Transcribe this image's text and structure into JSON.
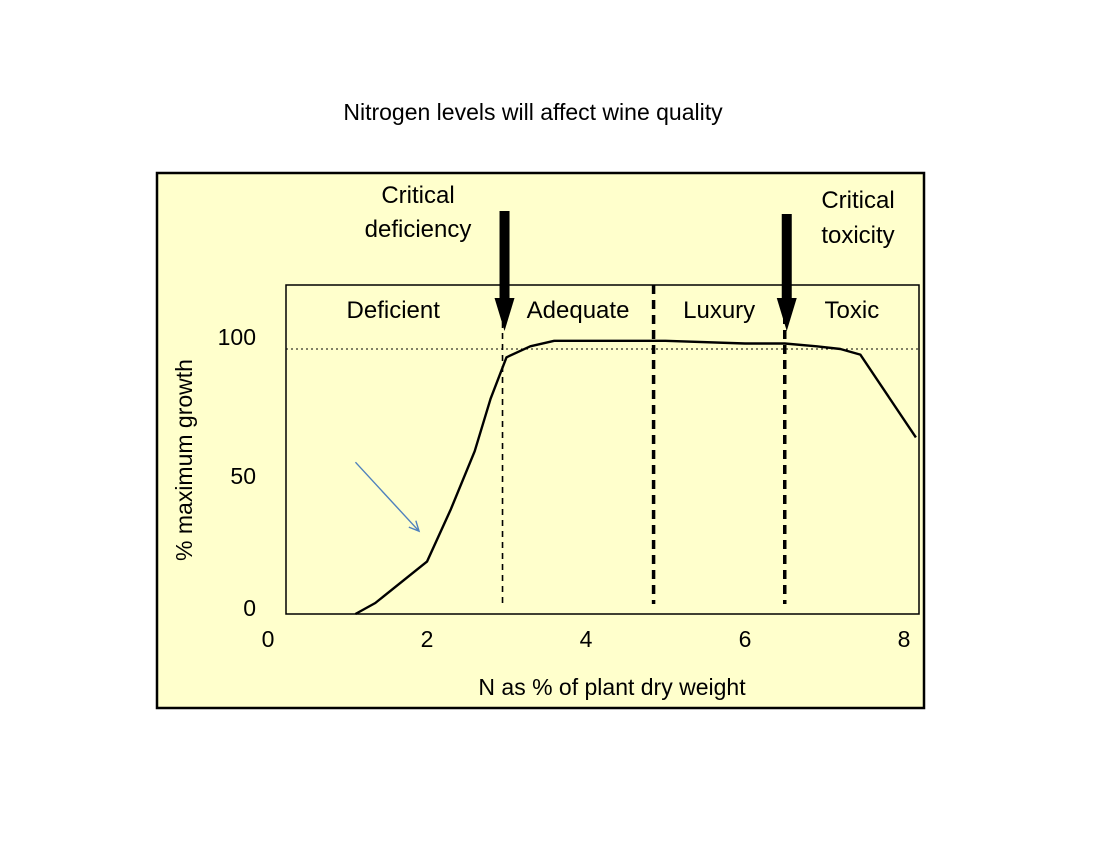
{
  "title": "Nitrogen levels will affect wine quality",
  "colors": {
    "panel_background": "#FFFFCC",
    "curve": "#000000",
    "pointer_arrow": "#4F81BD"
  },
  "chart_data": {
    "type": "line",
    "title": "",
    "xlabel": "N as % of plant dry weight",
    "ylabel": "% maximum growth",
    "xlim": [
      0,
      8.3
    ],
    "ylim": [
      0,
      100
    ],
    "x_ticks": [
      0,
      2,
      4,
      6,
      8
    ],
    "y_ticks": [
      0,
      50,
      100
    ],
    "grid": false,
    "reference_line_y": 100,
    "series": [
      {
        "x": [
          1.1,
          1.35,
          2.0,
          2.3,
          2.6,
          2.8,
          3.0,
          3.3,
          3.6,
          4.0,
          5.0,
          6.0,
          6.5,
          6.9,
          7.2,
          7.45,
          8.15
        ],
        "y": [
          0,
          4,
          19,
          38,
          59,
          78,
          93,
          97,
          99,
          99,
          99,
          98,
          98,
          97,
          96,
          94,
          64
        ]
      }
    ],
    "zones": [
      {
        "label": "Deficient",
        "x_start": 0.2,
        "x_end": 2.95
      },
      {
        "label": "Adequate",
        "x_start": 2.95,
        "x_end": 4.85
      },
      {
        "label": "Luxury",
        "x_start": 4.85,
        "x_end": 6.5
      },
      {
        "label": "Toxic",
        "x_start": 6.5,
        "x_end": 8.3
      }
    ],
    "boundaries": [
      {
        "x": 2.95,
        "style": "dashed-thin"
      },
      {
        "x": 4.85,
        "style": "dashed-thick"
      },
      {
        "x": 6.5,
        "style": "dashed-thick"
      }
    ],
    "annotations": [
      {
        "lines": [
          "Critical",
          "deficiency"
        ],
        "arrow_x": 2.95
      },
      {
        "lines": [
          "Critical",
          "toxicity"
        ],
        "arrow_x": 6.5
      }
    ],
    "pointer_arrow": {
      "from": [
        1.1,
        55
      ],
      "to": [
        1.9,
        30
      ]
    }
  }
}
